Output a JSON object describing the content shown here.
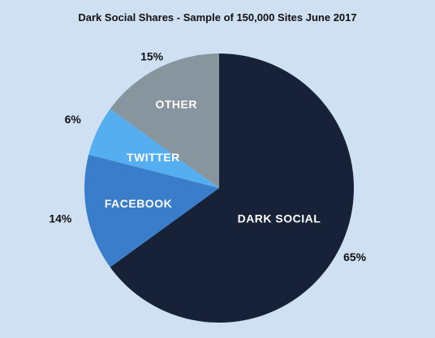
{
  "chart_data": {
    "type": "pie",
    "title": "Dark Social Shares - Sample of 150,000 Sites June 2017",
    "slices": [
      {
        "label": "DARK SOCIAL",
        "value": 65,
        "display": "65%",
        "color": "#172238"
      },
      {
        "label": "FACEBOOK",
        "value": 14,
        "display": "14%",
        "color": "#3a7ecb"
      },
      {
        "label": "TWITTER",
        "value": 6,
        "display": "6%",
        "color": "#55aef0"
      },
      {
        "label": "OTHER",
        "value": 15,
        "display": "15%",
        "color": "#87959e"
      }
    ],
    "background": "#cfe0f3"
  }
}
